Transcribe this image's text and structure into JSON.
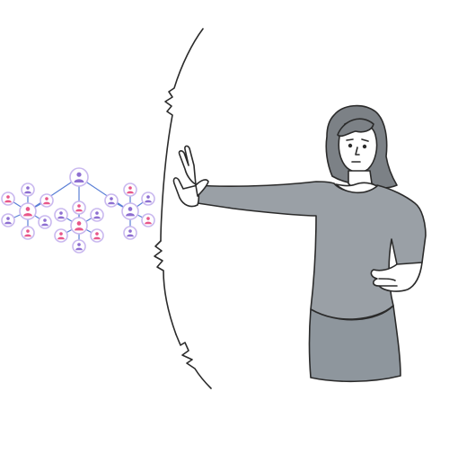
{
  "illustration": {
    "network": {
      "clusters": [
        {
          "id": "left",
          "satellites": 6
        },
        {
          "id": "center",
          "satellites": 6
        },
        {
          "id": "right",
          "satellites": 5
        }
      ]
    },
    "colors": {
      "person_fill": "#9aa0a6",
      "skirt_fill": "#8e969d",
      "hair_fill": "#7c8186",
      "skin_fill": "#ffffff",
      "outline": "#2b2b2b",
      "node_purple": "#8e6fd1",
      "node_pink": "#e8578a",
      "node_ring": "#c9b8ef",
      "line_blue": "#5a7fd6"
    },
    "icons": [
      "person-node-icon",
      "hand-stop-icon",
      "barrier-arc-icon"
    ]
  }
}
